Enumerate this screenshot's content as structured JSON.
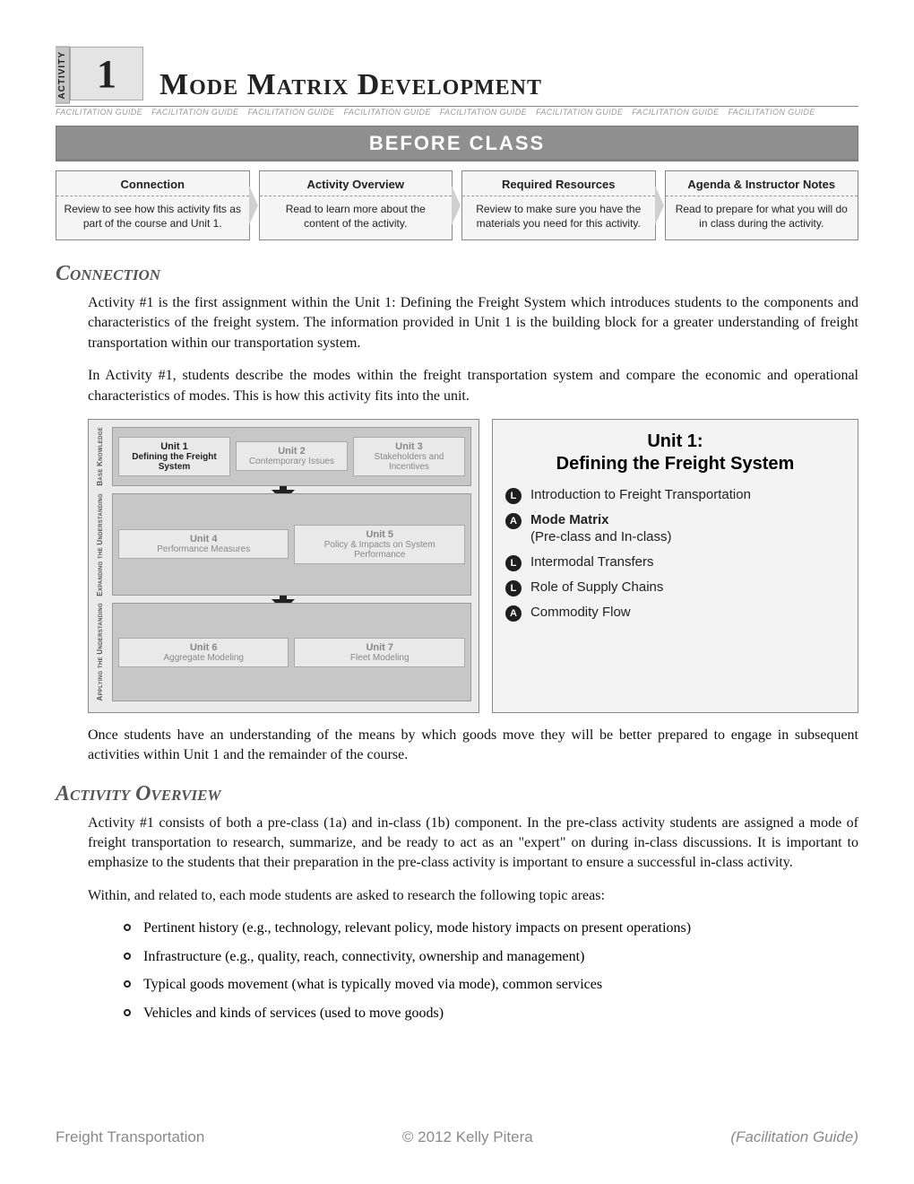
{
  "header": {
    "activity_label": "ACTIVITY",
    "activity_number": "1",
    "page_title": "Mode Matrix Development",
    "repeat_text": "FACILITATION GUIDE",
    "repeat_count": 8
  },
  "banner": "BEFORE CLASS",
  "boxes": [
    {
      "title": "Connection",
      "body": "Review to see how this activity fits as part of the course and Unit 1."
    },
    {
      "title": "Activity Overview",
      "body": "Read to learn more about the content of the activity."
    },
    {
      "title": "Required Resources",
      "body": "Review to make sure you have the materials you need for this activity."
    },
    {
      "title": "Agenda & Instructor Notes",
      "body": "Read to prepare for what you will do in class during the activity."
    }
  ],
  "connection": {
    "heading": "Connection",
    "p1": "Activity #1 is the first assignment within the Unit 1: Defining the Freight System which introduces students to the components and characteristics of the freight system. The information provided in Unit 1 is the building block for a greater understanding of freight transportation within our transportation system.",
    "p2": "In Activity #1, students describe the modes within the freight transportation system and compare the economic and operational characteristics of modes. This is how this activity fits into the unit.",
    "p3": "Once students have an understanding of the means by which goods move they will be better prepared to engage in subsequent activities within Unit 1 and the remainder of the course."
  },
  "diagram": {
    "rows": [
      {
        "label": "Base Knowledge",
        "units": [
          {
            "t": "Unit 1",
            "s": "Defining the Freight System",
            "active": true
          },
          {
            "t": "Unit 2",
            "s": "Contemporary Issues",
            "active": false
          },
          {
            "t": "Unit 3",
            "s": "Stakeholders and Incentives",
            "active": false
          }
        ]
      },
      {
        "label": "Expanding the Understanding",
        "units": [
          {
            "t": "Unit 4",
            "s": "Performance Measures",
            "active": false
          },
          {
            "t": "Unit 5",
            "s": "Policy & Impacts on System Performance",
            "active": false
          }
        ]
      },
      {
        "label": "Applying the Understanding",
        "units": [
          {
            "t": "Unit 6",
            "s": "Aggregate Modeling",
            "active": false
          },
          {
            "t": "Unit 7",
            "s": "Fleet Modeling",
            "active": false
          }
        ]
      }
    ]
  },
  "unit1": {
    "title_line1": "Unit 1:",
    "title_line2": "Defining the Freight System",
    "items": [
      {
        "type": "L",
        "text": "Introduction to Freight Transportation",
        "bold": false
      },
      {
        "type": "A",
        "text": "Mode Matrix",
        "sub": "(Pre-class and In-class)",
        "bold": true
      },
      {
        "type": "L",
        "text": "Intermodal Transfers",
        "bold": false
      },
      {
        "type": "L",
        "text": "Role of Supply Chains",
        "bold": false
      },
      {
        "type": "A",
        "text": "Commodity Flow",
        "bold": false
      }
    ]
  },
  "overview": {
    "heading": "Activity Overview",
    "p1": "Activity #1 consists of both a pre-class (1a) and in-class (1b) component. In the pre-class activity students are assigned a mode of freight transportation to research, summarize, and be ready to act as an \"expert\" on during in-class discussions. It is important to emphasize to the students that their preparation in the pre-class activity is important to ensure a successful in-class activity.",
    "p2": "Within, and related to, each mode students are asked to research the following topic areas:",
    "topics": [
      "Pertinent history (e.g., technology, relevant policy, mode history impacts on present operations)",
      "Infrastructure (e.g., quality, reach, connectivity, ownership and management)",
      "Typical goods movement (what is typically moved via mode), common services",
      "Vehicles and kinds of services (used to move goods)"
    ]
  },
  "footer": {
    "left": "Freight Transportation",
    "center": "© 2012 Kelly Pitera",
    "right": "(Facilitation Guide)"
  },
  "colors": {
    "banner_bg": "#8f8f8f",
    "box_bg": "#f5f5f5",
    "border": "#888888",
    "muted_text": "#9a9a9a",
    "heading": "#555555"
  }
}
